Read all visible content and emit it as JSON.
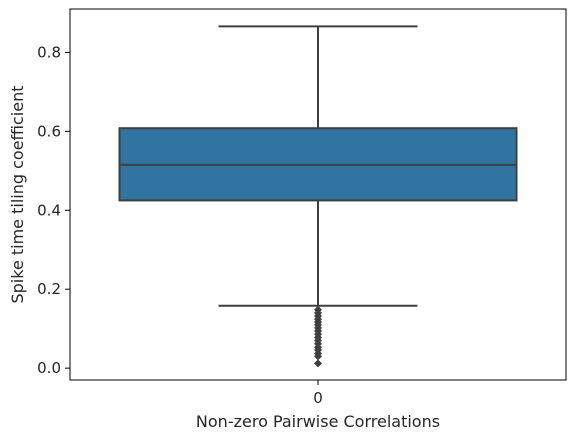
{
  "chart_data": {
    "type": "box",
    "categories": [
      "0"
    ],
    "xlabel": "Non-zero Pairwise Correlations",
    "ylabel": "Spike time tiling coefficient",
    "ylim": [
      -0.03,
      0.91
    ],
    "yticks": [
      0.0,
      0.2,
      0.4,
      0.6,
      0.8
    ],
    "ytick_labels": [
      "0.0",
      "0.2",
      "0.4",
      "0.6",
      "0.8"
    ],
    "grid": false,
    "legend": "none",
    "box": {
      "category": "0",
      "q1": 0.425,
      "median": 0.515,
      "q3": 0.608,
      "whisker_low": 0.158,
      "whisker_high": 0.866,
      "outliers": [
        0.148,
        0.14,
        0.132,
        0.124,
        0.117,
        0.11,
        0.102,
        0.094,
        0.086,
        0.078,
        0.07,
        0.062,
        0.053,
        0.046,
        0.037,
        0.03,
        0.012
      ]
    },
    "colors": {
      "box_fill": "#3274a1",
      "line": "#3f3f3f",
      "axis": "#000000"
    }
  }
}
